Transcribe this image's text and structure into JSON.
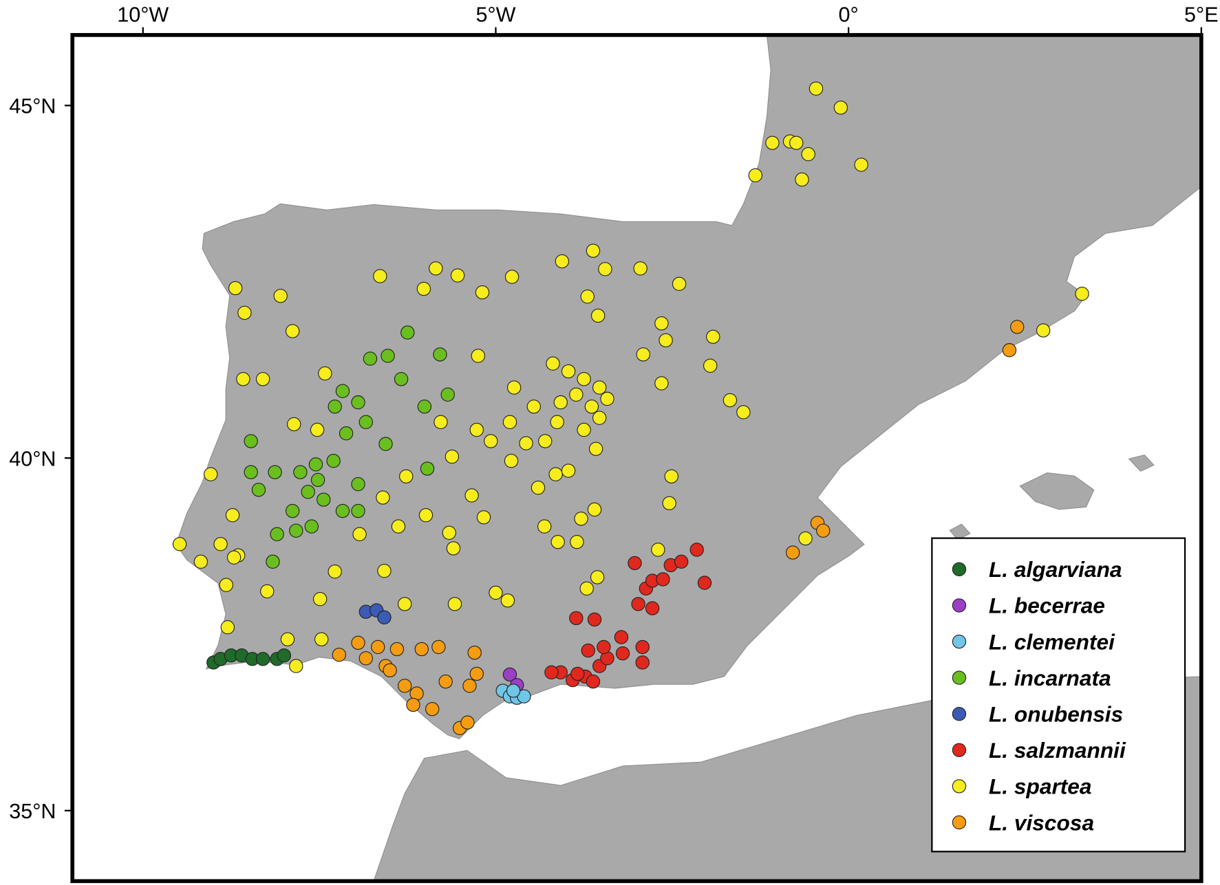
{
  "chart_data": {
    "type": "scatter",
    "xlim": [
      -11,
      5
    ],
    "ylim": [
      34,
      46
    ],
    "xticks": [
      {
        "value": -10,
        "label": "10°W"
      },
      {
        "value": -5,
        "label": "5°W"
      },
      {
        "value": 0,
        "label": "0°"
      },
      {
        "value": 5,
        "label": "5°E"
      }
    ],
    "yticks": [
      {
        "value": 35,
        "label": "35°N"
      },
      {
        "value": 40,
        "label": "40°N"
      },
      {
        "value": 45,
        "label": "45°N"
      }
    ],
    "legend": "lower right",
    "series": [
      {
        "name": "L. algarviana",
        "color": "#1f6b2a",
        "x": [
          -9.0,
          -8.9,
          -8.75,
          -8.6,
          -8.45,
          -8.3,
          -8.1,
          -8.0
        ],
        "values": [
          37.1,
          37.15,
          37.2,
          37.2,
          37.15,
          37.15,
          37.15,
          37.2
        ]
      },
      {
        "name": "L. becerrae",
        "color": "#9b3fc6",
        "x": [
          -4.8,
          -4.7
        ],
        "values": [
          36.93,
          36.78
        ]
      },
      {
        "name": "L. clementei",
        "color": "#6fc6e6",
        "x": [
          -4.9,
          -4.8,
          -4.7,
          -4.6,
          -4.75
        ],
        "values": [
          36.7,
          36.62,
          36.6,
          36.62,
          36.7
        ]
      },
      {
        "name": "L. incarnata",
        "color": "#6abf1e",
        "x": [
          -6.25,
          -5.79,
          -6.34,
          -5.68,
          -6.01,
          -7.17,
          -6.95,
          -6.84,
          -7.12,
          -6.56,
          -8.47,
          -8.47,
          -8.13,
          -7.77,
          -7.55,
          -7.3,
          -6.95,
          -7.66,
          -7.44,
          -7.88,
          -7.17,
          -6.95,
          -8.1,
          -7.83,
          -7.61,
          -8.16,
          -5.97,
          -8.36,
          -7.52,
          -6.53,
          -6.78,
          -7.28
        ],
        "values": [
          41.78,
          41.47,
          41.12,
          40.9,
          40.73,
          40.95,
          40.79,
          40.51,
          40.35,
          40.2,
          40.24,
          39.8,
          39.8,
          39.8,
          39.91,
          39.96,
          39.63,
          39.52,
          39.41,
          39.25,
          39.25,
          39.25,
          38.92,
          38.97,
          39.03,
          38.53,
          39.85,
          39.55,
          39.69,
          41.45,
          41.41,
          40.73
        ]
      },
      {
        "name": "L. onubensis",
        "color": "#3b5bb5",
        "x": [
          -6.84,
          -6.69,
          -6.58
        ],
        "values": [
          37.82,
          37.84,
          37.74
        ]
      },
      {
        "name": "L. salzmannii",
        "color": "#e0281e",
        "x": [
          -3.86,
          -3.6,
          -4.08,
          -3.91,
          -3.73,
          -3.53,
          -3.42,
          -3.69,
          -3.22,
          -3.2,
          -2.92,
          -2.92,
          -2.98,
          -2.78,
          -2.87,
          -2.78,
          -2.63,
          -2.52,
          -2.37,
          -2.15,
          -2.04,
          -3.03,
          -3.84,
          -4.21,
          -3.47,
          -3.62
        ],
        "values": [
          37.73,
          37.71,
          36.96,
          36.85,
          36.9,
          37.05,
          37.16,
          37.27,
          37.46,
          37.23,
          37.1,
          37.32,
          37.93,
          37.87,
          38.15,
          38.26,
          38.28,
          38.48,
          38.53,
          38.7,
          38.23,
          38.51,
          36.94,
          36.96,
          37.32,
          36.83
        ]
      },
      {
        "name": "L. spartea",
        "color": "#f7ec1c",
        "x": [
          -0.46,
          -0.11,
          -1.08,
          -0.83,
          -0.57,
          0.18,
          -1.32,
          -0.66,
          -0.74,
          -8.69,
          -8.05,
          -8.56,
          -7.88,
          -6.64,
          -6.02,
          -5.85,
          -5.54,
          -5.19,
          -4.77,
          -4.06,
          -3.62,
          -3.45,
          -2.95,
          -2.4,
          -3.7,
          -3.55,
          -2.65,
          -2.59,
          -1.92,
          -2.91,
          -1.96,
          -2.65,
          -1.49,
          -1.68,
          3.31,
          2.76,
          -4.19,
          -3.97,
          -3.75,
          -3.53,
          -3.86,
          -4.08,
          -3.64,
          -3.42,
          -4.13,
          -3.75,
          -3.53,
          -4.74,
          -4.46,
          -4.8,
          -5.27,
          -5.62,
          -5.07,
          -4.57,
          -4.3,
          -3.58,
          -5.78,
          -5.25,
          -9.48,
          -9.18,
          -9.04,
          -8.73,
          -8.9,
          -8.65,
          -8.82,
          -8.8,
          -8.58,
          -8.3,
          -7.42,
          -7.86,
          -7.53,
          -8.71,
          -8.24,
          -7.95,
          -7.49,
          -7.47,
          -7.28,
          -7.83,
          -6.58,
          -6.29,
          -5.99,
          -5.66,
          -5.6,
          -5.34,
          -5.17,
          -5.0,
          -4.83,
          -5.58,
          -4.31,
          -4.12,
          -3.85,
          -3.79,
          -3.6,
          -4.15,
          -3.97,
          -3.71,
          -3.56,
          -2.51,
          -2.54,
          -2.7,
          -0.61,
          -6.38,
          -6.93,
          -6.6,
          -6.27,
          -4.4,
          -4.78
        ],
        "values": [
          45.24,
          44.97,
          44.47,
          44.49,
          44.31,
          44.16,
          44.01,
          43.95,
          44.47,
          42.41,
          42.3,
          42.06,
          41.8,
          42.58,
          42.4,
          42.69,
          42.59,
          42.35,
          42.57,
          42.79,
          42.94,
          42.68,
          42.69,
          42.47,
          42.29,
          42.02,
          41.91,
          41.67,
          41.72,
          41.47,
          41.31,
          41.06,
          40.65,
          40.82,
          42.33,
          41.81,
          41.34,
          41.23,
          41.12,
          41.0,
          40.9,
          40.79,
          40.73,
          40.84,
          40.51,
          40.4,
          40.57,
          41.0,
          40.73,
          40.51,
          40.4,
          40.02,
          40.24,
          40.21,
          40.24,
          40.13,
          40.51,
          41.45,
          38.78,
          38.53,
          39.77,
          39.19,
          38.78,
          38.62,
          38.2,
          37.6,
          41.12,
          41.12,
          41.2,
          40.48,
          40.4,
          38.59,
          38.11,
          37.43,
          38.0,
          37.43,
          38.39,
          37.05,
          38.4,
          37.93,
          39.19,
          38.94,
          38.72,
          39.47,
          39.16,
          38.09,
          37.98,
          37.93,
          39.03,
          38.81,
          38.81,
          39.14,
          39.27,
          39.77,
          39.82,
          38.15,
          38.31,
          39.74,
          39.36,
          38.7,
          38.86,
          39.03,
          38.92,
          39.44,
          39.74,
          39.58,
          39.96
        ]
      },
      {
        "name": "L. viscosa",
        "color": "#f59c10",
        "x": [
          2.39,
          2.28,
          -0.44,
          -0.36,
          -0.79,
          -7.22,
          -6.95,
          -6.67,
          -6.4,
          -6.56,
          -6.29,
          -6.12,
          -6.17,
          -5.9,
          -5.51,
          -5.4,
          -5.37,
          -5.27,
          -5.71,
          -6.05,
          -5.81,
          -5.3,
          -6.84,
          -6.5
        ],
        "values": [
          41.86,
          41.53,
          39.08,
          38.97,
          38.66,
          37.21,
          37.38,
          37.32,
          37.29,
          37.05,
          36.77,
          36.66,
          36.5,
          36.44,
          36.17,
          36.25,
          36.77,
          36.94,
          36.83,
          37.29,
          37.32,
          37.24,
          37.16,
          36.99
        ]
      }
    ]
  }
}
